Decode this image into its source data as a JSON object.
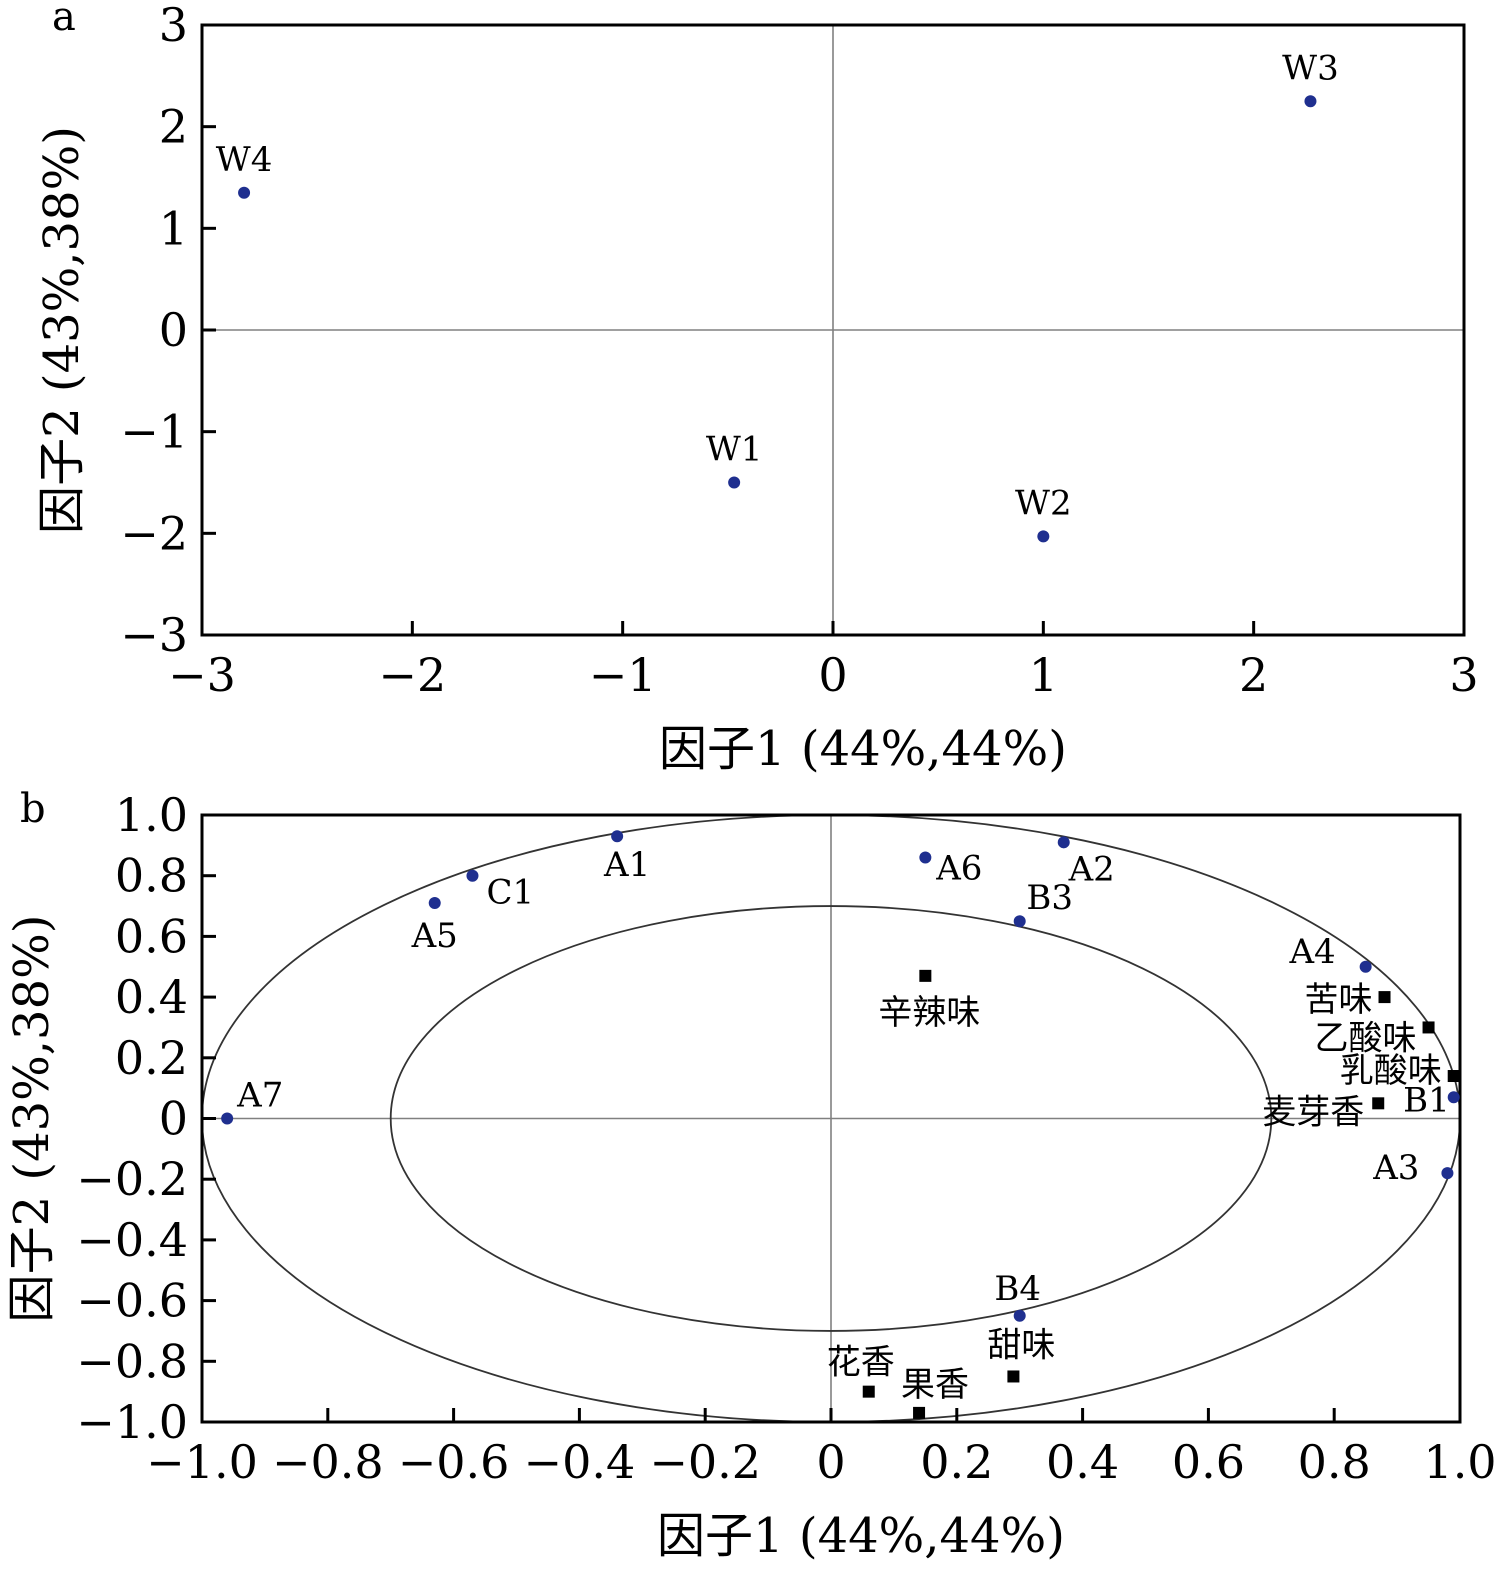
{
  "chart_data": [
    {
      "type": "scatter",
      "panel": "a",
      "xlabel": "因子1 (44%,44%)",
      "ylabel": "因子2 (43%,38%)",
      "xlim": [
        -3,
        3
      ],
      "ylim": [
        -3,
        3
      ],
      "xticks": [
        "−3",
        "−2",
        "−1",
        "0",
        "1",
        "2",
        "3"
      ],
      "yticks": [
        "3",
        "2",
        "1",
        "0",
        "−1",
        "−2",
        "−3"
      ],
      "points": [
        {
          "label": "W1",
          "x": -0.47,
          "y": -1.5
        },
        {
          "label": "W2",
          "x": 1.0,
          "y": -2.03
        },
        {
          "label": "W3",
          "x": 2.27,
          "y": 2.25
        },
        {
          "label": "W4",
          "x": -2.8,
          "y": 1.35
        }
      ],
      "marker_color": "#1f2f8f"
    },
    {
      "type": "scatter",
      "panel": "b",
      "xlabel": "因子1 (44%,44%)",
      "ylabel": "因子2 (43%,38%)",
      "xlim": [
        -1.0,
        1.0
      ],
      "ylim": [
        -1.0,
        1.0
      ],
      "xticks": [
        "−1.0",
        "−0.8",
        "−0.6",
        "−0.4",
        "−0.2",
        "0",
        "0.2",
        "0.4",
        "0.6",
        "0.8",
        "1.0"
      ],
      "yticks": [
        "1.0",
        "0.8",
        "0.6",
        "0.4",
        "0.2",
        "0",
        "−0.2",
        "−0.4",
        "−0.6",
        "−0.8",
        "−1.0"
      ],
      "ellipse_radii": [
        1.0,
        0.7
      ],
      "circle_points": [
        {
          "label": "A1",
          "x": -0.34,
          "y": 0.93
        },
        {
          "label": "A2",
          "x": 0.37,
          "y": 0.91
        },
        {
          "label": "A3",
          "x": 0.98,
          "y": -0.18
        },
        {
          "label": "A4",
          "x": 0.85,
          "y": 0.5
        },
        {
          "label": "A5",
          "x": -0.63,
          "y": 0.71
        },
        {
          "label": "A6",
          "x": 0.15,
          "y": 0.86
        },
        {
          "label": "A7",
          "x": -0.96,
          "y": 0.0
        },
        {
          "label": "B1",
          "x": 0.99,
          "y": 0.07
        },
        {
          "label": "B3",
          "x": 0.3,
          "y": 0.65
        },
        {
          "label": "B4",
          "x": 0.3,
          "y": -0.65
        },
        {
          "label": "C1",
          "x": -0.57,
          "y": 0.8
        }
      ],
      "square_points": [
        {
          "label": "辛辣味",
          "x": 0.15,
          "y": 0.47
        },
        {
          "label": "苦味",
          "x": 0.88,
          "y": 0.4
        },
        {
          "label": "乙酸味",
          "x": 0.95,
          "y": 0.3
        },
        {
          "label": "乳酸味",
          "x": 0.99,
          "y": 0.14
        },
        {
          "label": "麦芽香",
          "x": 0.87,
          "y": 0.05
        },
        {
          "label": "甜味",
          "x": 0.29,
          "y": -0.85
        },
        {
          "label": "花香",
          "x": 0.06,
          "y": -0.9
        },
        {
          "label": "果香",
          "x": 0.14,
          "y": -0.97
        }
      ],
      "circle_color": "#1f2f8f",
      "square_color": "#000000"
    }
  ]
}
